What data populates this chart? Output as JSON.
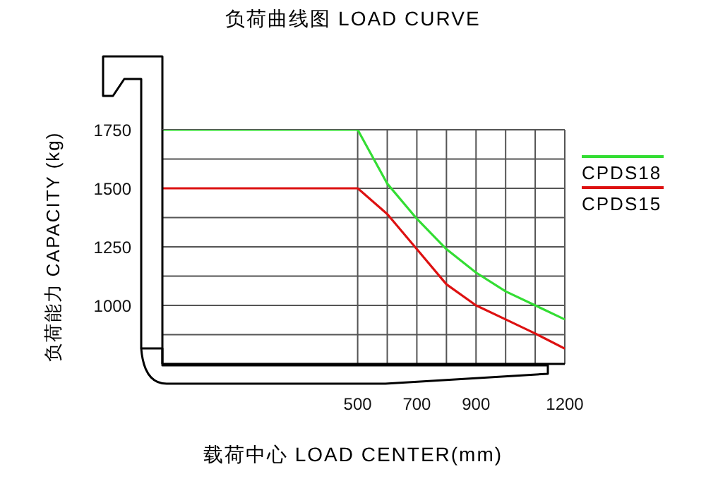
{
  "chart_data": {
    "type": "line",
    "title": "负荷曲线图 LOAD CURVE",
    "xlabel": "载荷中心 LOAD CENTER(mm)",
    "ylabel": "负荷能力 CAPACITY (kg)",
    "x": [
      -160,
      500,
      600,
      700,
      800,
      900,
      1000,
      1100,
      1200
    ],
    "series": [
      {
        "name": "CPDS18",
        "color": "#33dd33",
        "values": [
          1750,
          1750,
          1520,
          1370,
          1240,
          1140,
          1060,
          1000,
          940
        ]
      },
      {
        "name": "CPDS15",
        "color": "#dd1111",
        "values": [
          1500,
          1500,
          1390,
          1240,
          1090,
          1000,
          940,
          880,
          815
        ]
      }
    ],
    "xlim": [
      -160,
      1200
    ],
    "xticks": [
      500,
      {
        "value": 600,
        "label": null
      },
      700,
      {
        "value": 800,
        "label": null
      },
      900,
      {
        "value": 1000,
        "label": null
      },
      {
        "value": 1100,
        "label": null
      },
      1200
    ],
    "ylim": [
      750,
      1750
    ],
    "yticks": [
      {
        "value": 875,
        "label": null
      },
      1000,
      {
        "value": 1125,
        "label": null
      },
      1250,
      {
        "value": 1375,
        "label": null
      },
      1500,
      {
        "value": 1625,
        "label": null
      },
      1750
    ],
    "grid": true,
    "legend": "right",
    "marker": "none",
    "line_style": "solid"
  }
}
